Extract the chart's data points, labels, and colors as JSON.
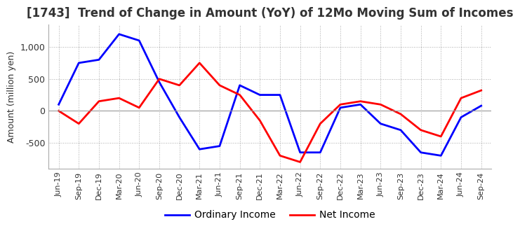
{
  "title": "[1743]  Trend of Change in Amount (YoY) of 12Mo Moving Sum of Incomes",
  "ylabel": "Amount (million yen)",
  "x_labels": [
    "Jun-19",
    "Sep-19",
    "Dec-19",
    "Mar-20",
    "Jun-20",
    "Sep-20",
    "Dec-20",
    "Mar-21",
    "Jun-21",
    "Sep-21",
    "Dec-21",
    "Mar-22",
    "Jun-22",
    "Sep-22",
    "Dec-22",
    "Mar-23",
    "Jun-23",
    "Sep-23",
    "Dec-23",
    "Mar-24",
    "Jun-24",
    "Sep-24"
  ],
  "ordinary_income": [
    100,
    750,
    800,
    1200,
    1100,
    450,
    -100,
    -600,
    -550,
    400,
    250,
    250,
    -650,
    -650,
    50,
    100,
    -200,
    -300,
    -650,
    -700,
    -100,
    80
  ],
  "net_income": [
    0,
    -200,
    150,
    200,
    50,
    500,
    400,
    750,
    400,
    250,
    -150,
    -700,
    -800,
    -200,
    100,
    150,
    100,
    -50,
    -300,
    -400,
    200,
    320
  ],
  "ordinary_color": "#0000ff",
  "net_color": "#ff0000",
  "ylim": [
    -900,
    1350
  ],
  "yticks": [
    -500,
    0,
    500,
    1000
  ],
  "grid_color": "#aaaaaa",
  "background_color": "#ffffff",
  "title_fontsize": 12,
  "legend_labels": [
    "Ordinary Income",
    "Net Income"
  ]
}
